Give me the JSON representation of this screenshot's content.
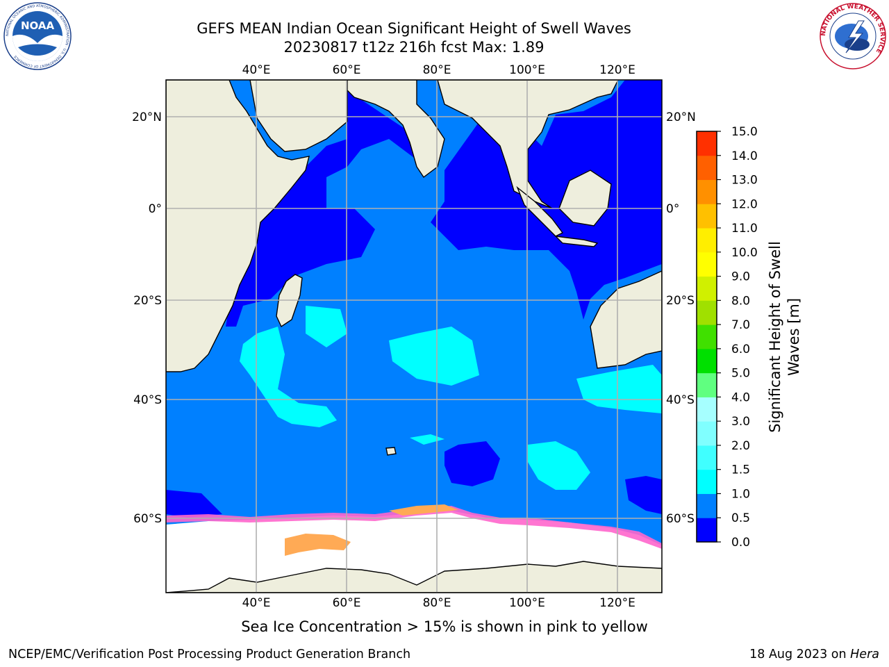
{
  "header": {
    "title_line1": "GEFS MEAN Indian Ocean Significant Height of Swell Waves",
    "title_line2": "20230817 t12z 216h fcst   Max: 1.89",
    "left_logo": "NOAA",
    "left_logo_ring_text": "NATIONAL OCEANIC AND ATMOSPHERIC ADMINISTRATION · U.S. DEPARTMENT OF COMMERCE",
    "right_logo_ring_text": "NATIONAL WEATHER SERVICE"
  },
  "map": {
    "lon_labels": [
      "40°E",
      "60°E",
      "80°E",
      "100°E",
      "120°E"
    ],
    "lat_labels": [
      "20°N",
      "0°",
      "20°S",
      "40°S",
      "60°S"
    ],
    "colors": {
      "land": "#eeeedd",
      "ice": "#ffffff",
      "grid": "#b0b0b0"
    }
  },
  "colorbar": {
    "label_line1": "Significant Height of Swell",
    "label_line2": "Waves [m]",
    "ticks": [
      "0.0",
      "0.5",
      "1.0",
      "1.5",
      "2.0",
      "3.0",
      "4.0",
      "5.0",
      "6.0",
      "7.0",
      "8.0",
      "9.0",
      "10.0",
      "11.0",
      "12.0",
      "13.0",
      "14.0",
      "15.0"
    ],
    "colors": [
      "#0000ff",
      "#0080ff",
      "#00ffff",
      "#40ffff",
      "#80ffff",
      "#a6ffff",
      "#60ff80",
      "#00e000",
      "#40e000",
      "#a0e000",
      "#d0f000",
      "#ffff00",
      "#ffee00",
      "#ffc000",
      "#ff9000",
      "#ff6000",
      "#ff3000",
      "#ff0000"
    ]
  },
  "footer": {
    "note": "Sea Ice Concentration > 15% is shown in pink to yellow",
    "credit_left": "NCEP/EMC/Verification Post Processing Product Generation Branch",
    "credit_right_date": "18 Aug 2023 on ",
    "credit_right_host": "Hera"
  }
}
